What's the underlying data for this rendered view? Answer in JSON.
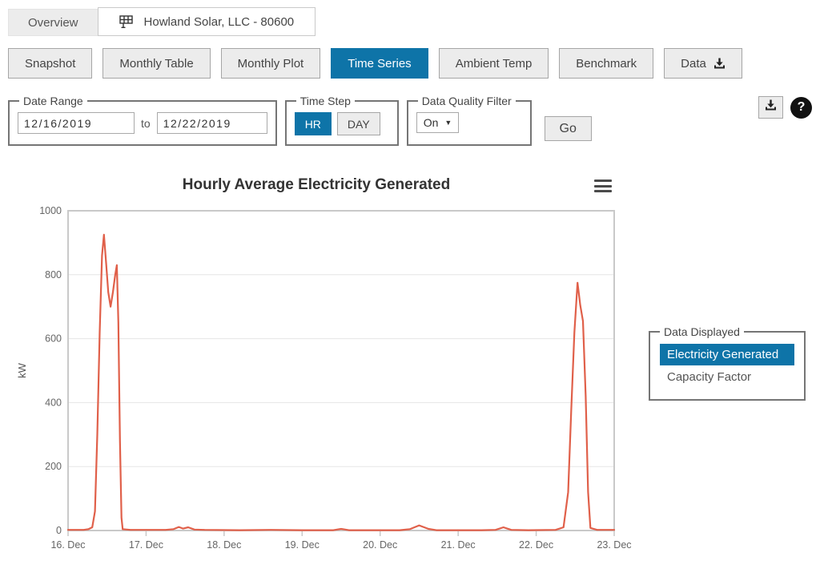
{
  "tabs": {
    "overview": "Overview",
    "site": "Howland Solar, LLC - 80600"
  },
  "nav": {
    "items": [
      {
        "label": "Snapshot"
      },
      {
        "label": "Monthly Table"
      },
      {
        "label": "Monthly Plot"
      },
      {
        "label": "Time Series"
      },
      {
        "label": "Ambient Temp"
      },
      {
        "label": "Benchmark"
      },
      {
        "label": "Data"
      }
    ],
    "active": "Time Series"
  },
  "controls": {
    "date_range": {
      "legend": "Date Range",
      "start": "12/16/2019",
      "to_label": "to",
      "end": "12/22/2019"
    },
    "time_step": {
      "legend": "Time Step",
      "hr": "HR",
      "day": "DAY",
      "selected": "HR"
    },
    "quality": {
      "legend": "Data Quality Filter",
      "selected": "On"
    },
    "go": "Go",
    "help_glyph": "?"
  },
  "legend_panel": {
    "legend": "Data Displayed",
    "items": [
      {
        "label": "Electricity Generated",
        "active": true
      },
      {
        "label": "Capacity Factor",
        "active": false
      }
    ]
  },
  "colors": {
    "accent_blue": "#0e74a8",
    "line_orange": "#e0604a",
    "plot_border": "#c9c9c9",
    "gridline": "#e6e6e6",
    "axis_text": "#666666"
  },
  "chart_data": {
    "type": "line",
    "title": "Hourly Average Electricity Generated",
    "xlabel": "",
    "ylabel": "kW",
    "ylim": [
      0,
      1000
    ],
    "yticks": [
      0,
      200,
      400,
      600,
      800,
      1000
    ],
    "x_tick_labels": [
      "16. Dec",
      "17. Dec",
      "18. Dec",
      "19. Dec",
      "20. Dec",
      "21. Dec",
      "22. Dec",
      "23. Dec"
    ],
    "x_range_days": [
      0,
      7
    ],
    "grid": true,
    "legend_position": "right-panel",
    "series": [
      {
        "name": "Electricity Generated",
        "units": "kW",
        "color": "#e0604a",
        "points_day_kw": [
          [
            0.0,
            2
          ],
          [
            0.2,
            2
          ],
          [
            0.26,
            4
          ],
          [
            0.31,
            10
          ],
          [
            0.345,
            60
          ],
          [
            0.375,
            300
          ],
          [
            0.405,
            620
          ],
          [
            0.435,
            860
          ],
          [
            0.46,
            925
          ],
          [
            0.49,
            830
          ],
          [
            0.515,
            745
          ],
          [
            0.545,
            700
          ],
          [
            0.575,
            745
          ],
          [
            0.605,
            800
          ],
          [
            0.625,
            830
          ],
          [
            0.645,
            650
          ],
          [
            0.665,
            280
          ],
          [
            0.685,
            40
          ],
          [
            0.7,
            4
          ],
          [
            0.8,
            2
          ],
          [
            1.25,
            2
          ],
          [
            1.35,
            4
          ],
          [
            1.42,
            11
          ],
          [
            1.475,
            6
          ],
          [
            1.54,
            10
          ],
          [
            1.62,
            3
          ],
          [
            1.75,
            2
          ],
          [
            2.2,
            1
          ],
          [
            2.6,
            2
          ],
          [
            3.0,
            1
          ],
          [
            3.4,
            1
          ],
          [
            3.5,
            5
          ],
          [
            3.6,
            1
          ],
          [
            4.25,
            1
          ],
          [
            4.38,
            4
          ],
          [
            4.5,
            16
          ],
          [
            4.62,
            5
          ],
          [
            4.72,
            1
          ],
          [
            5.3,
            1
          ],
          [
            5.48,
            2
          ],
          [
            5.58,
            10
          ],
          [
            5.68,
            2
          ],
          [
            5.9,
            1
          ],
          [
            6.25,
            2
          ],
          [
            6.35,
            10
          ],
          [
            6.41,
            120
          ],
          [
            6.45,
            380
          ],
          [
            6.49,
            620
          ],
          [
            6.53,
            775
          ],
          [
            6.565,
            705
          ],
          [
            6.6,
            655
          ],
          [
            6.635,
            420
          ],
          [
            6.665,
            120
          ],
          [
            6.695,
            8
          ],
          [
            6.78,
            2
          ],
          [
            7.0,
            2
          ]
        ]
      }
    ]
  }
}
